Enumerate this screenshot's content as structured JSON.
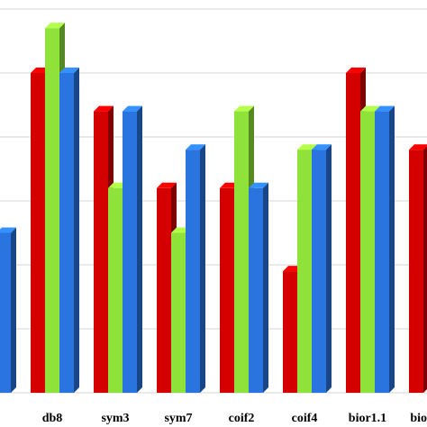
{
  "chart_data": {
    "type": "bar",
    "categories": [
      null,
      "db8",
      "sym3",
      "sym7",
      "coif2",
      "coif4",
      "bior1.1",
      "bio"
    ],
    "series": [
      {
        "color": "#d40000",
        "values": [
          null,
          5,
          4.4,
          3.2,
          3.2,
          1.9,
          5,
          3.8
        ]
      },
      {
        "color": "#8fe23a",
        "values": [
          null,
          5.7,
          3.2,
          2.5,
          4.4,
          3.8,
          4.4,
          null
        ]
      },
      {
        "color": "#2a74e0",
        "values": [
          2.5,
          5,
          4.4,
          3.8,
          3.2,
          3.8,
          4.4,
          null
        ]
      }
    ],
    "ylim": [
      0,
      6
    ],
    "yticks": [
      0,
      1,
      2,
      3,
      4,
      5,
      6
    ],
    "grid": true
  }
}
